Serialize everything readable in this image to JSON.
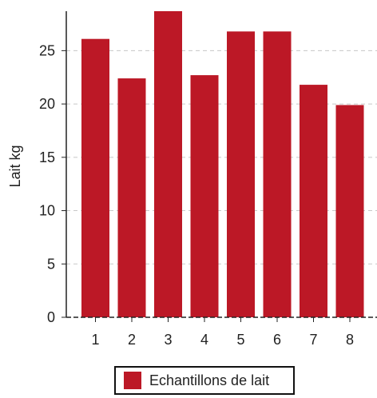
{
  "chart_data": {
    "type": "bar",
    "categories": [
      "1",
      "2",
      "3",
      "4",
      "5",
      "6",
      "7",
      "8"
    ],
    "series": [
      {
        "name": "Echantillons de lait",
        "values": [
          26.1,
          22.4,
          28.7,
          22.7,
          26.8,
          26.8,
          21.8,
          19.9
        ]
      }
    ],
    "xlabel": "",
    "ylabel": "Lait kg",
    "ylim": [
      0,
      28.7
    ],
    "yticks": [
      "0",
      "5",
      "10",
      "15",
      "20",
      "25"
    ],
    "grid": true,
    "legend_position": "bottom",
    "bar_color": "#bc1826"
  }
}
